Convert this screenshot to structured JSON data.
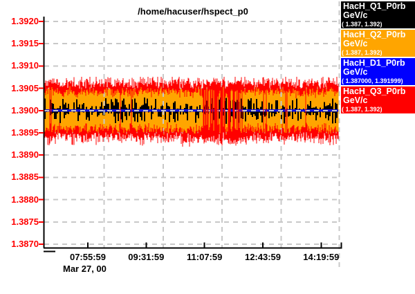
{
  "chart_data": {
    "type": "line-stripchart",
    "title": "/home/hacuser/hspect_p0",
    "x_date_label": "Mar 27, 00",
    "x_tick_labels": [
      "07:55:59",
      "09:31:59",
      "11:07:59",
      "12:43:59",
      "14:19:59"
    ],
    "y_tick_labels": [
      "1.3920",
      "1.3915",
      "1.3910",
      "1.3905",
      "1.3900",
      "1.3895",
      "1.3890",
      "1.3885",
      "1.3880",
      "1.3875",
      "1.3870"
    ],
    "ylim": [
      1.387,
      1.392
    ],
    "grid": {
      "dashed": true,
      "color": "#c8c8c8"
    },
    "y_label_color": "#ff0000",
    "series": [
      {
        "name": "HacH_Q1_P0rb",
        "units": "GeV/c",
        "range_label": "( 1.387, 1.392)",
        "color": "#000000",
        "kind": "noise-spikes",
        "center": 1.39,
        "spike_min": 1.38972,
        "spike_max": 1.3903
      },
      {
        "name": "HacH_Q2_P0rb",
        "units": "GeV/c",
        "range_label": "( 1.387, 1.392)",
        "color": "#ffa500",
        "kind": "noise-band",
        "band_top": 1.39052,
        "band_bottom": 1.38948,
        "edge_jitter": 7.5e-05
      },
      {
        "name": "HacH_D1_P0rb",
        "units": "GeV/c",
        "range_label": "( 1.387000, 1.391999)",
        "color": "#0000ff",
        "plot_color": "#1212dd",
        "kind": "flat-line",
        "value": 1.39
      },
      {
        "name": "HacH_Q3_P0rb",
        "units": "GeV/c",
        "range_label": "( 1.387, 1.392)",
        "color": "#ff0000",
        "kind": "noisy-envelope",
        "env_top": 1.39076,
        "env_bottom": 1.38914,
        "burst_zone_x": [
          293,
          352
        ]
      }
    ]
  }
}
